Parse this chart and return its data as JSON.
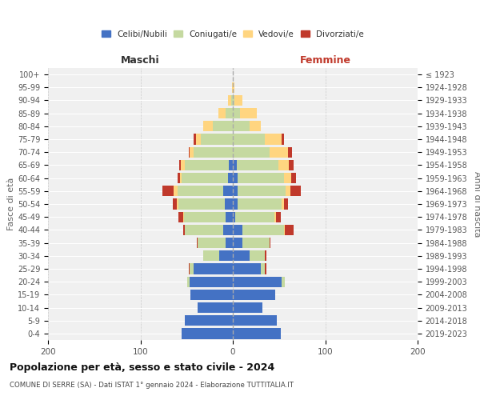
{
  "age_groups": [
    "0-4",
    "5-9",
    "10-14",
    "15-19",
    "20-24",
    "25-29",
    "30-34",
    "35-39",
    "40-44",
    "45-49",
    "50-54",
    "55-59",
    "60-64",
    "65-69",
    "70-74",
    "75-79",
    "80-84",
    "85-89",
    "90-94",
    "95-99",
    "100+"
  ],
  "birth_years": [
    "2019-2023",
    "2014-2018",
    "2009-2013",
    "2004-2008",
    "1999-2003",
    "1994-1998",
    "1989-1993",
    "1984-1988",
    "1979-1983",
    "1974-1978",
    "1969-1973",
    "1964-1968",
    "1959-1963",
    "1954-1958",
    "1949-1953",
    "1944-1948",
    "1939-1943",
    "1934-1938",
    "1929-1933",
    "1924-1928",
    "≤ 1923"
  ],
  "male": {
    "celibi": [
      55,
      52,
      38,
      46,
      47,
      42,
      15,
      8,
      10,
      8,
      9,
      10,
      5,
      4,
      0,
      0,
      0,
      0,
      0,
      0,
      0
    ],
    "coniugati": [
      0,
      0,
      0,
      0,
      2,
      5,
      17,
      30,
      42,
      45,
      50,
      50,
      50,
      48,
      42,
      35,
      22,
      8,
      2,
      0,
      0
    ],
    "vedovi": [
      0,
      0,
      0,
      0,
      0,
      0,
      0,
      0,
      0,
      1,
      2,
      4,
      2,
      4,
      5,
      5,
      10,
      8,
      3,
      1,
      0
    ],
    "divorziati": [
      0,
      0,
      0,
      0,
      0,
      1,
      0,
      1,
      2,
      5,
      4,
      12,
      3,
      2,
      1,
      2,
      0,
      0,
      0,
      0,
      0
    ]
  },
  "female": {
    "nubili": [
      52,
      48,
      32,
      46,
      53,
      30,
      18,
      10,
      10,
      3,
      5,
      5,
      5,
      4,
      0,
      0,
      0,
      0,
      0,
      0,
      0
    ],
    "coniugate": [
      0,
      0,
      0,
      0,
      3,
      5,
      17,
      30,
      45,
      42,
      48,
      52,
      50,
      45,
      40,
      35,
      18,
      8,
      2,
      0,
      0
    ],
    "vedove": [
      0,
      0,
      0,
      0,
      0,
      0,
      0,
      0,
      1,
      2,
      2,
      5,
      8,
      12,
      20,
      18,
      12,
      18,
      8,
      2,
      0
    ],
    "divorziate": [
      0,
      0,
      0,
      0,
      0,
      1,
      1,
      1,
      10,
      5,
      5,
      12,
      5,
      5,
      4,
      2,
      0,
      0,
      0,
      0,
      0
    ]
  },
  "colors": {
    "celibi": "#4472C4",
    "coniugati": "#C5D9A0",
    "vedovi": "#FFD580",
    "divorziati": "#C0392B"
  },
  "xlim": 200,
  "title_main": "Popolazione per età, sesso e stato civile - 2024",
  "title_sub": "COMUNE DI SERRE (SA) - Dati ISTAT 1° gennaio 2024 - Elaborazione TUTTITALIA.IT",
  "ylabel_left": "Fasce di età",
  "ylabel_right": "Anni di nascita",
  "xlabel_left": "Maschi",
  "xlabel_right": "Femmine",
  "legend_labels": [
    "Celibi/Nubili",
    "Coniugati/e",
    "Vedovi/e",
    "Divorziati/e"
  ],
  "bg_color": "#FFFFFF",
  "plot_bg": "#F0F0F0",
  "grid_color": "#CCCCCC"
}
